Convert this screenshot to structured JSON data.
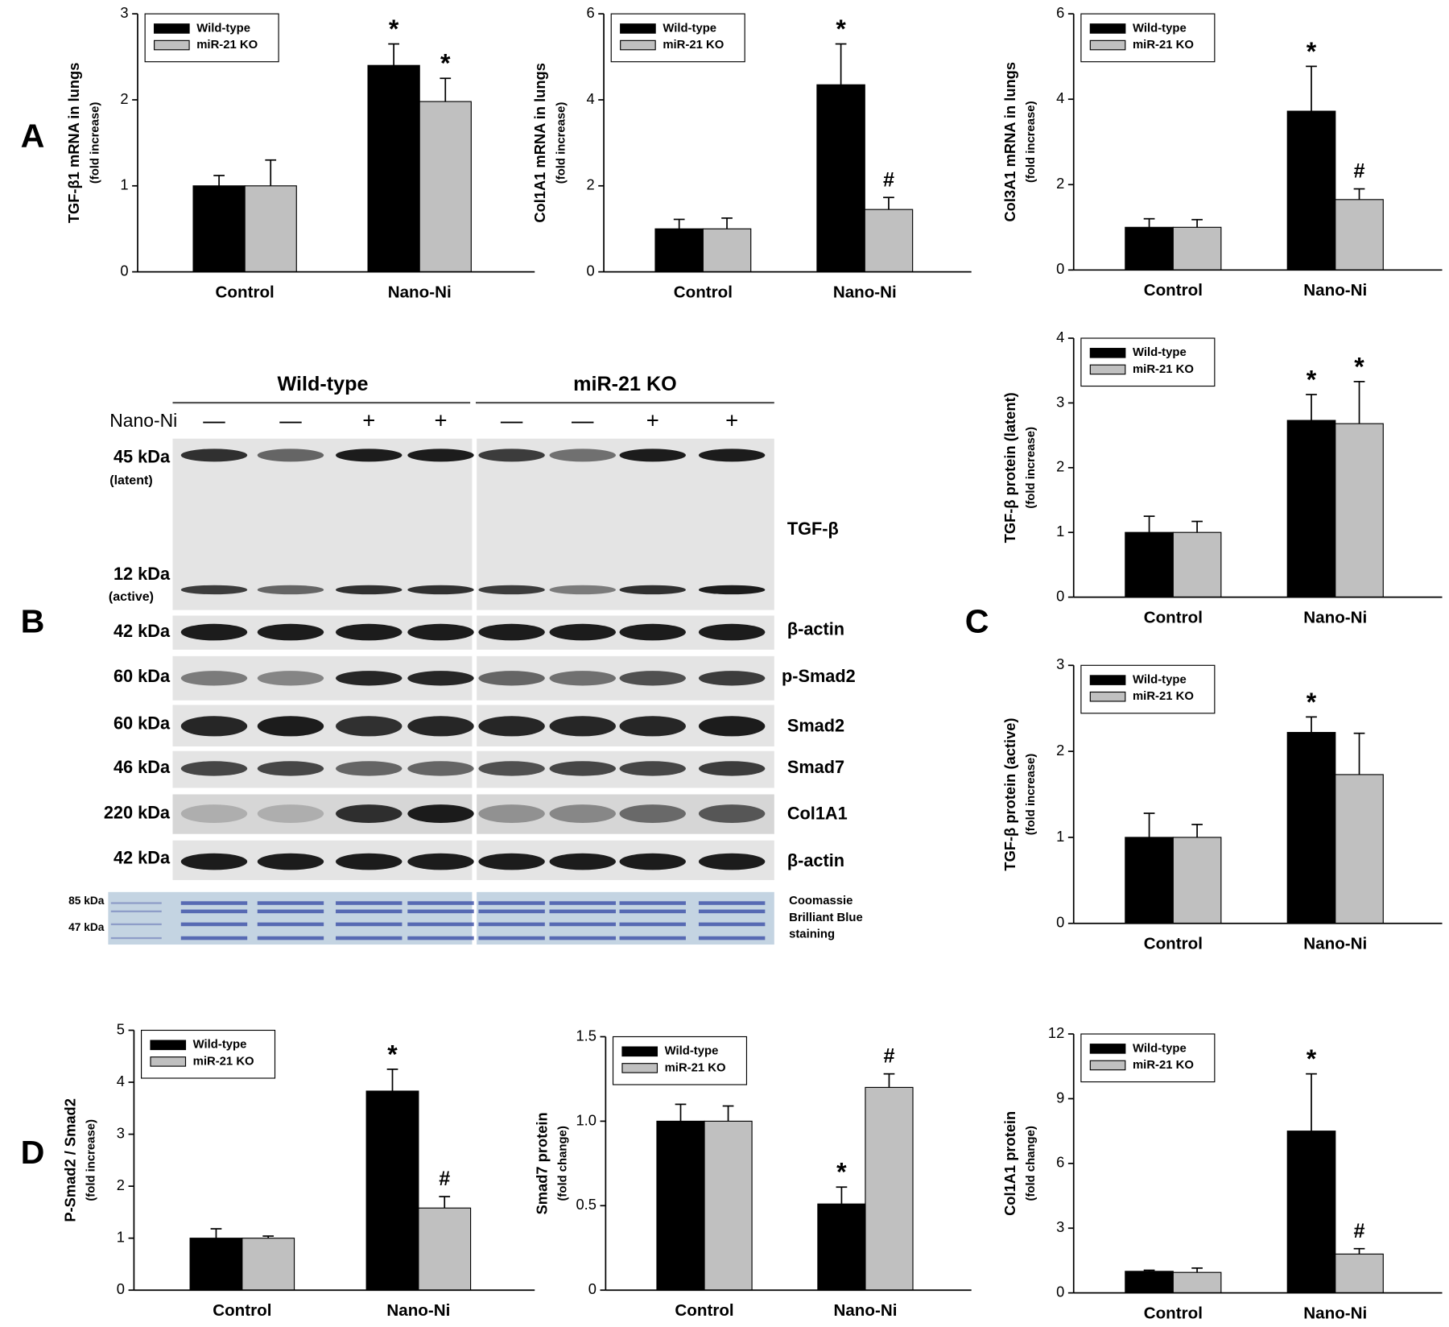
{
  "panels": [
    "A",
    "B",
    "C",
    "D"
  ],
  "blot": {
    "groups": [
      "Wild-type",
      "miR-21 KO"
    ],
    "treatment_label": "Nano-Ni",
    "treatment_signs": [
      "—",
      "—",
      "+",
      "+",
      "—",
      "—",
      "+",
      "+"
    ],
    "rows": [
      {
        "kda": "45 kDa",
        "sublabel": "(latent)"
      },
      {
        "kda": "12 kDa",
        "sublabel": "(active)"
      },
      {
        "kda": "42 kDa",
        "name": "β-actin"
      },
      {
        "kda": "60 kDa",
        "name": "p-Smad2"
      },
      {
        "kda": "60 kDa",
        "name": "Smad2"
      },
      {
        "kda": "46 kDa",
        "name": "Smad7"
      },
      {
        "kda": "220 kDa",
        "name": "Col1A1"
      },
      {
        "kda": "42 kDa",
        "name": "β-actin"
      }
    ],
    "tgf_name": "TGF-β",
    "stain_markers": [
      "85 kDa",
      "47 kDa"
    ],
    "stain_name": [
      "Coomassie",
      "Brilliant Blue",
      "staining"
    ]
  },
  "chart_data": [
    {
      "type": "bar",
      "y_label": "TGF-β1 mRNA in lungs",
      "y_label_sub": "(fold increase)",
      "categories": [
        "Control",
        "Nano-Ni"
      ],
      "series": [
        {
          "name": "Wild-type",
          "color": "#000000",
          "values": [
            1.0,
            2.4
          ],
          "errors": [
            0.12,
            0.25
          ],
          "annotations": [
            null,
            "*"
          ]
        },
        {
          "name": "miR-21 KO",
          "color": "#c0c0c0",
          "values": [
            1.0,
            1.98
          ],
          "errors": [
            0.3,
            0.27
          ],
          "annotations": [
            null,
            "*"
          ]
        }
      ],
      "ylim": [
        0,
        3
      ],
      "yticks": [
        0,
        1,
        2,
        3
      ],
      "legend": "upper left"
    },
    {
      "type": "bar",
      "y_label": "Col1A1 mRNA in lungs",
      "y_label_sub": "(fold increase)",
      "categories": [
        "Control",
        "Nano-Ni"
      ],
      "series": [
        {
          "name": "Wild-type",
          "color": "#000000",
          "values": [
            1.0,
            4.35
          ],
          "errors": [
            0.22,
            0.95
          ],
          "annotations": [
            null,
            "*"
          ]
        },
        {
          "name": "miR-21 KO",
          "color": "#c0c0c0",
          "values": [
            1.0,
            1.45
          ],
          "errors": [
            0.25,
            0.28
          ],
          "annotations": [
            null,
            "#"
          ]
        }
      ],
      "ylim": [
        0,
        6
      ],
      "yticks": [
        0,
        2,
        4,
        6
      ],
      "legend": "upper left"
    },
    {
      "type": "bar",
      "y_label": "Col3A1 mRNA in lungs",
      "y_label_sub": "(fold increase)",
      "categories": [
        "Control",
        "Nano-Ni"
      ],
      "series": [
        {
          "name": "Wild-type",
          "color": "#000000",
          "values": [
            1.0,
            3.72
          ],
          "errors": [
            0.2,
            1.05
          ],
          "annotations": [
            null,
            "*"
          ]
        },
        {
          "name": "miR-21 KO",
          "color": "#c0c0c0",
          "values": [
            1.0,
            1.65
          ],
          "errors": [
            0.18,
            0.25
          ],
          "annotations": [
            null,
            "#"
          ]
        }
      ],
      "ylim": [
        0,
        6
      ],
      "yticks": [
        0,
        2,
        4,
        6
      ],
      "legend": "upper left"
    },
    {
      "type": "bar",
      "y_label": "TGF-β protein (latent)",
      "y_label_sub": "(fold increase)",
      "categories": [
        "Control",
        "Nano-Ni"
      ],
      "series": [
        {
          "name": "Wild-type",
          "color": "#000000",
          "values": [
            1.0,
            2.73
          ],
          "errors": [
            0.25,
            0.4
          ],
          "annotations": [
            null,
            "*"
          ]
        },
        {
          "name": "miR-21 KO",
          "color": "#c0c0c0",
          "values": [
            1.0,
            2.68
          ],
          "errors": [
            0.17,
            0.65
          ],
          "annotations": [
            null,
            "*"
          ]
        }
      ],
      "ylim": [
        0,
        4
      ],
      "yticks": [
        0,
        1,
        2,
        3,
        4
      ],
      "legend": "upper left"
    },
    {
      "type": "bar",
      "y_label": "TGF-β protein (active)",
      "y_label_sub": "(fold increase)",
      "categories": [
        "Control",
        "Nano-Ni"
      ],
      "series": [
        {
          "name": "Wild-type",
          "color": "#000000",
          "values": [
            1.0,
            2.22
          ],
          "errors": [
            0.28,
            0.18
          ],
          "annotations": [
            null,
            "*"
          ]
        },
        {
          "name": "miR-21 KO",
          "color": "#c0c0c0",
          "values": [
            1.0,
            1.73
          ],
          "errors": [
            0.15,
            0.48
          ],
          "annotations": [
            null,
            null
          ]
        }
      ],
      "ylim": [
        0,
        3
      ],
      "yticks": [
        0,
        1,
        2,
        3
      ],
      "legend": "upper left"
    },
    {
      "type": "bar",
      "y_label": "P-Smad2 / Smad2",
      "y_label_sub": "(fold increase)",
      "categories": [
        "Control",
        "Nano-Ni"
      ],
      "series": [
        {
          "name": "Wild-type",
          "color": "#000000",
          "values": [
            1.0,
            3.83
          ],
          "errors": [
            0.18,
            0.42
          ],
          "annotations": [
            null,
            "*"
          ]
        },
        {
          "name": "miR-21 KO",
          "color": "#c0c0c0",
          "values": [
            1.0,
            1.58
          ],
          "errors": [
            0.04,
            0.22
          ],
          "annotations": [
            null,
            "#"
          ]
        }
      ],
      "ylim": [
        0,
        5
      ],
      "yticks": [
        0,
        1,
        2,
        3,
        4,
        5
      ],
      "legend": "upper left"
    },
    {
      "type": "bar",
      "y_label": "Smad7 protein",
      "y_label_sub": "(fold change)",
      "categories": [
        "Control",
        "Nano-Ni"
      ],
      "series": [
        {
          "name": "Wild-type",
          "color": "#000000",
          "values": [
            1.0,
            0.51
          ],
          "errors": [
            0.1,
            0.1
          ],
          "annotations": [
            null,
            "*"
          ]
        },
        {
          "name": "miR-21 KO",
          "color": "#c0c0c0",
          "values": [
            1.0,
            1.2
          ],
          "errors": [
            0.09,
            0.08
          ],
          "annotations": [
            null,
            "#"
          ]
        }
      ],
      "ylim": [
        0,
        1.5
      ],
      "yticks": [
        0,
        0.5,
        {
          "value": 1,
          "label": "1.0"
        },
        1.5
      ],
      "legend": "upper left"
    },
    {
      "type": "bar",
      "y_label": "Col1A1 protein",
      "y_label_sub": "(fold change)",
      "categories": [
        "Control",
        "Nano-Ni"
      ],
      "series": [
        {
          "name": "Wild-type",
          "color": "#000000",
          "values": [
            1.0,
            7.5
          ],
          "errors": [
            0.05,
            2.65
          ],
          "annotations": [
            null,
            "*"
          ]
        },
        {
          "name": "miR-21 KO",
          "color": "#c0c0c0",
          "values": [
            0.95,
            1.8
          ],
          "errors": [
            0.2,
            0.25
          ],
          "annotations": [
            null,
            "#"
          ]
        }
      ],
      "ylim": [
        0,
        12
      ],
      "yticks": [
        0,
        3,
        6,
        9,
        12
      ],
      "legend": "upper left"
    }
  ]
}
